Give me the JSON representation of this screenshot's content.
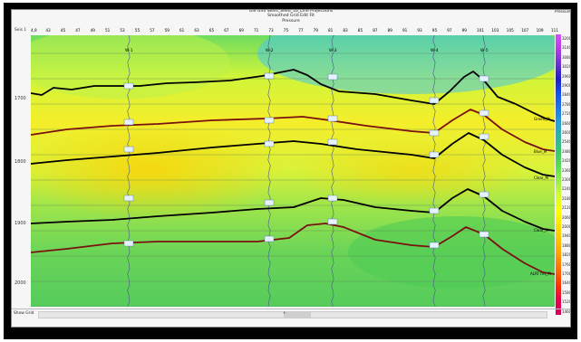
{
  "window": {
    "corner_label": "Seis 1",
    "title_line1": "Ole Giro Wells_Seed_16_Line Projections",
    "title_line2": "Smoothed Grid Edit Fit",
    "title_line3": "Pressure",
    "colorbar_title": "Pressure"
  },
  "ribbon_labels": [
    "4,9",
    "43",
    "45",
    "47",
    "49",
    "51",
    "53",
    "55",
    "57",
    "59",
    "61",
    "63",
    "65",
    "67",
    "69",
    "71",
    "73",
    "75",
    "77",
    "79",
    "81",
    "83",
    "85",
    "87",
    "89",
    "91",
    "93",
    "95",
    "97",
    "99",
    "101",
    "103",
    "105",
    "107",
    "109",
    "111"
  ],
  "well_labels": [
    "W-1",
    "W-2",
    "W-3",
    "W-4",
    "W-5"
  ],
  "horizon_labels": [
    "Green_M",
    "Blue_M",
    "Clear_M",
    "Clear_M",
    "ALRT hrs_M"
  ],
  "depth_labels": [
    "1700",
    "1800",
    "1900",
    "2000"
  ],
  "colorbar": {
    "ticks": [
      "3200",
      "3140",
      "3080",
      "3020",
      "2960",
      "2900",
      "2840",
      "2780",
      "2720",
      "2660",
      "2600",
      "2540",
      "2480",
      "2420",
      "2360",
      "2300",
      "2240",
      "2180",
      "2120",
      "2060",
      "2000",
      "1940",
      "1880",
      "1820",
      "1760",
      "1700",
      "1640",
      "1580",
      "1520",
      "1460"
    ],
    "colors": [
      "#d4005a",
      "#e6004b",
      "#ff3300",
      "#ff6a00",
      "#ff9a00",
      "#ffc100",
      "#ffe000",
      "#ffff00",
      "#d8ff2c",
      "#9cf04c",
      "#5fdc57",
      "#3cc864",
      "#2fb4a0",
      "#28a0d2",
      "#1e78e6",
      "#1450f0",
      "#1e1ec8",
      "#6e32d2",
      "#b43ce6",
      "#d750f5"
    ]
  },
  "status": {
    "left": "Show Grid",
    "right": "+"
  }
}
